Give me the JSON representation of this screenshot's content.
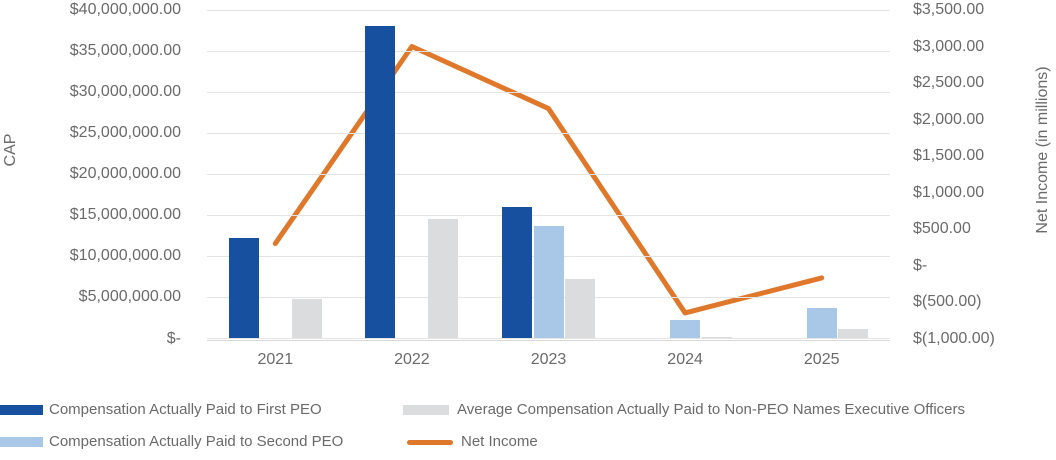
{
  "chart_data": {
    "type": "bar",
    "subtype": "combo-clustered-bar-with-line",
    "title": "",
    "categories": [
      "2021",
      "2022",
      "2023",
      "2024",
      "2025"
    ],
    "bar_series": [
      {
        "name": "Compensation Actually Paid to First PEO",
        "color": "#17509E",
        "values": [
          12200000,
          38000000,
          16000000,
          null,
          null
        ]
      },
      {
        "name": "Compensation Actually Paid to Second PEO",
        "color": "#A9C8E8",
        "values": [
          null,
          null,
          13700000,
          2300000,
          3700000
        ]
      },
      {
        "name": "Average Compensation Actually Paid to Non-PEO Names Executive Officers",
        "color": "#DBDCDD",
        "values": [
          4800000,
          14500000,
          7200000,
          200000,
          1100000
        ]
      }
    ],
    "line_series": {
      "name": "Net Income",
      "color": "#E0782B",
      "axis": "right",
      "values": [
        300,
        3000,
        2150,
        -650,
        -170
      ]
    },
    "left_axis": {
      "title": "CAP",
      "min": 0,
      "max": 40000000,
      "step": 5000000,
      "tick_labels": [
        "$40,000,000.00",
        "$35,000,000.00",
        "$30,000,000.00",
        "$25,000,000.00",
        "$20,000,000.00",
        "$15,000,000.00",
        "$10,000,000.00",
        "$5,000,000.00",
        "$-"
      ]
    },
    "right_axis": {
      "title": "Net Income (in millions)",
      "min": -1000,
      "max": 3500,
      "step": 500,
      "tick_labels": [
        "$3,500.00",
        "$3,000.00",
        "$2,500.00",
        "$2,000.00",
        "$1,500.00",
        "$1,000.00",
        "$500.00",
        "$-",
        "$(500.00)",
        "$(1,000.00)"
      ]
    },
    "grid": "horizontal",
    "legend_position": "bottom",
    "colors": {
      "gridline": "#E4E4E4",
      "axis_line": "#D9D9D9",
      "text": "#6A6A6A"
    }
  }
}
